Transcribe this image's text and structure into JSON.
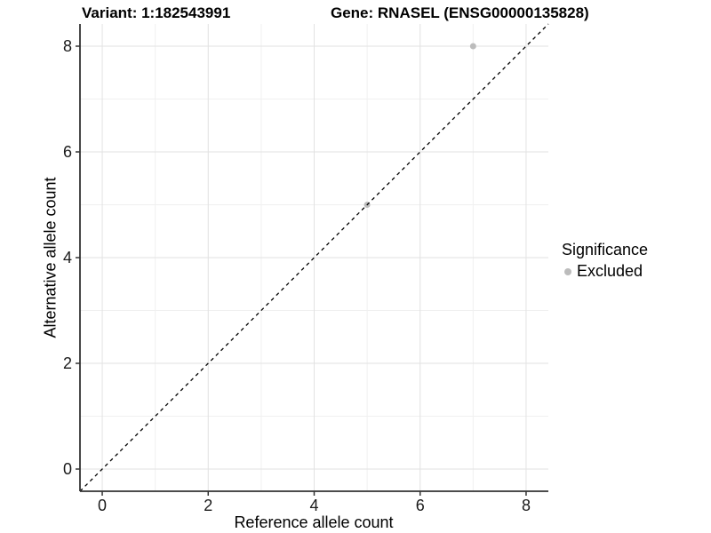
{
  "titles": {
    "left": "Variant: 1:182543991",
    "right": "Gene: RNASEL (ENSG00000135828)"
  },
  "chart_data": {
    "type": "scatter",
    "title_left": "Variant: 1:182543991",
    "title_right": "Gene: RNASEL (ENSG00000135828)",
    "xlabel": "Reference allele count",
    "ylabel": "Alternative allele count",
    "xlim": [
      -0.42,
      8.42
    ],
    "ylim": [
      -0.42,
      8.42
    ],
    "xticks": [
      0,
      2,
      4,
      6,
      8
    ],
    "yticks": [
      0,
      2,
      4,
      6,
      8
    ],
    "minor_xticks": [
      1,
      3,
      5,
      7
    ],
    "minor_yticks": [
      1,
      3,
      5,
      7
    ],
    "grid": true,
    "reference_line": {
      "type": "identity",
      "slope": 1,
      "intercept": 0,
      "style": "dashed",
      "color": "#000000"
    },
    "series": [
      {
        "name": "Excluded",
        "color": "#bcbcbc",
        "points": [
          [
            5,
            5
          ],
          [
            7,
            8
          ]
        ]
      }
    ],
    "legend": {
      "title": "Significance",
      "position": "right",
      "items": [
        {
          "label": "Excluded",
          "color": "#bcbcbc"
        }
      ]
    }
  },
  "colors": {
    "background": "#ffffff",
    "grid_major": "#e2e2e2",
    "grid_minor": "#f0f0f0",
    "axis_line": "#333333",
    "tick_text": "#1a1a1a",
    "point": "#bcbcbc"
  }
}
